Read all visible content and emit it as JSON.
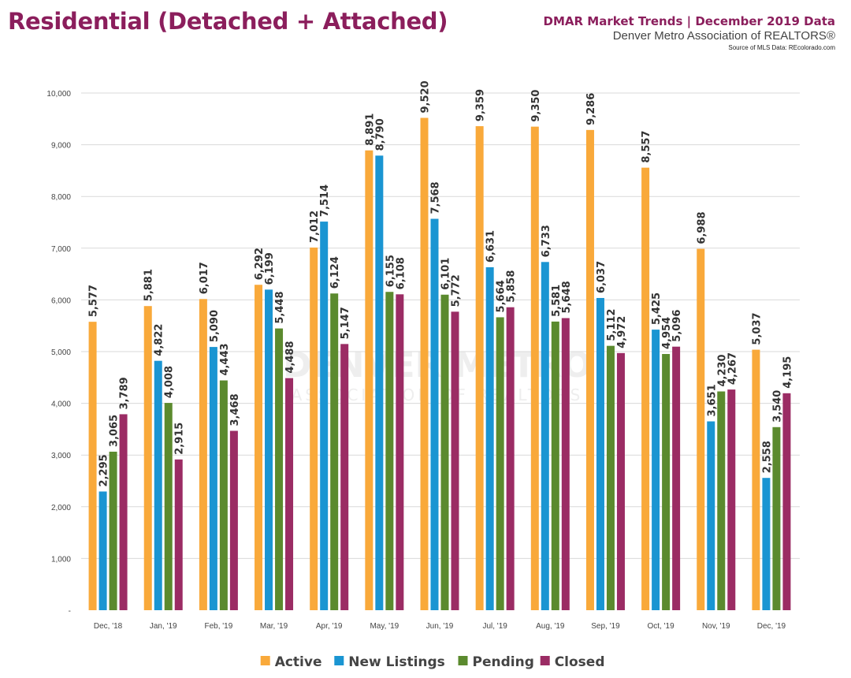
{
  "header": {
    "title": "Residential (Detached + Attached)",
    "subtitle": "DMAR Market Trends | December 2019 Data",
    "organization": "Denver Metro Association of REALTORS®",
    "source": "Source of MLS Data: REcolorado.com"
  },
  "watermark": {
    "line1": "DENVER METRO",
    "line2": "ASSOCIATION OF REALTORS"
  },
  "chart_data": {
    "type": "bar",
    "categories": [
      "Dec, '18",
      "Jan, '19",
      "Feb, '19",
      "Mar, '19",
      "Apr, '19",
      "May, '19",
      "Jun, '19",
      "Jul, '19",
      "Aug, '19",
      "Sep, '19",
      "Oct, '19",
      "Nov, '19",
      "Dec, '19"
    ],
    "series": [
      {
        "name": "Active",
        "color": "#F9A93A",
        "values": [
          5577,
          5881,
          6017,
          6292,
          7012,
          8891,
          9520,
          9359,
          9350,
          9286,
          8557,
          6988,
          5037
        ]
      },
      {
        "name": "New Listings",
        "color": "#1A95D2",
        "values": [
          2295,
          4822,
          5090,
          6199,
          7514,
          8790,
          7568,
          6631,
          6733,
          6037,
          5425,
          3651,
          2558
        ]
      },
      {
        "name": "Pending",
        "color": "#5B8A2E",
        "values": [
          3065,
          4008,
          4443,
          5448,
          6124,
          6155,
          6101,
          5664,
          5581,
          5112,
          4954,
          4230,
          3540
        ]
      },
      {
        "name": "Closed",
        "color": "#9B2C64",
        "values": [
          3789,
          2915,
          3468,
          4488,
          5147,
          6108,
          5772,
          5858,
          5648,
          4972,
          5096,
          4267,
          4195
        ]
      }
    ],
    "ylim": [
      0,
      10000
    ],
    "yticks": [
      "-",
      "1,000",
      "2,000",
      "3,000",
      "4,000",
      "5,000",
      "6,000",
      "7,000",
      "8,000",
      "9,000",
      "10,000"
    ],
    "grid": true,
    "legend": "bottom",
    "data_labels": true,
    "xlabel": "",
    "ylabel": ""
  }
}
